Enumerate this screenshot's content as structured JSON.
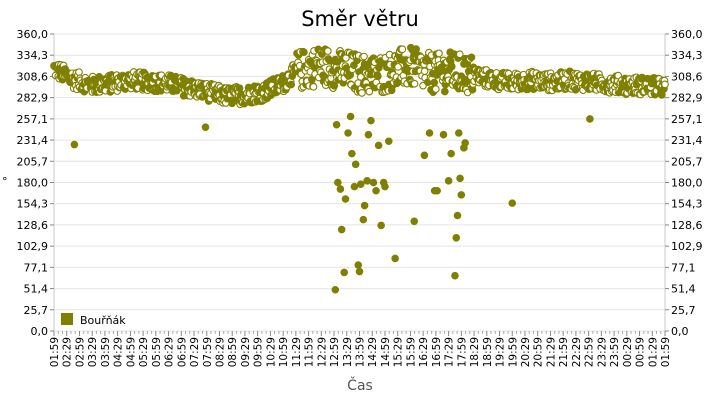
{
  "chart_data": {
    "type": "scatter",
    "title": "Směr větru",
    "xlabel": "Čas",
    "ylabel": "°",
    "ylim": [
      0,
      360
    ],
    "yticks": [
      "0,0",
      "25,7",
      "51,4",
      "77,1",
      "102,9",
      "128,6",
      "154,3",
      "180,0",
      "205,7",
      "231,4",
      "257,1",
      "282,9",
      "308,6",
      "334,3",
      "360,0"
    ],
    "xticks": [
      "01:59",
      "02:29",
      "02:59",
      "03:29",
      "03:59",
      "04:29",
      "04:59",
      "05:29",
      "05:59",
      "06:29",
      "06:59",
      "07:29",
      "07:59",
      "08:29",
      "08:59",
      "09:29",
      "09:59",
      "10:29",
      "10:59",
      "11:29",
      "11:59",
      "12:29",
      "12:59",
      "13:29",
      "13:59",
      "14:29",
      "14:59",
      "15:29",
      "15:59",
      "16:29",
      "16:59",
      "17:29",
      "17:59",
      "18:29",
      "18:59",
      "19:29",
      "19:59",
      "20:29",
      "20:59",
      "21:29",
      "21:59",
      "22:29",
      "22:59",
      "23:29",
      "23:59",
      "00:29",
      "00:59",
      "01:29",
      "01:59"
    ],
    "grid": true,
    "legend": "bottom-left",
    "series": [
      {
        "name": "Bouřňák",
        "color": "#808000",
        "baseline": [
          [
            0.0,
            318
          ],
          [
            1.5,
            305
          ],
          [
            3.0,
            298
          ],
          [
            4.5,
            300
          ],
          [
            6.0,
            304
          ],
          [
            7.5,
            302
          ],
          [
            9.0,
            300
          ],
          [
            10.5,
            295
          ],
          [
            12.0,
            290
          ],
          [
            13.5,
            285
          ],
          [
            15.0,
            286
          ],
          [
            16.5,
            290
          ],
          [
            18.0,
            300
          ],
          [
            19.0,
            315
          ],
          [
            20.0,
            318
          ],
          [
            21.0,
            322
          ],
          [
            22.0,
            318
          ],
          [
            23.0,
            316
          ],
          [
            24.0,
            312
          ],
          [
            25.0,
            310
          ],
          [
            26.0,
            312
          ],
          [
            27.0,
            318
          ],
          [
            28.0,
            320
          ],
          [
            29.0,
            315
          ],
          [
            30.0,
            312
          ],
          [
            31.0,
            315
          ],
          [
            32.0,
            312
          ],
          [
            33.0,
            310
          ],
          [
            34.0,
            306
          ],
          [
            35.0,
            303
          ],
          [
            36.0,
            302
          ],
          [
            37.5,
            304
          ],
          [
            39.0,
            302
          ],
          [
            40.5,
            304
          ],
          [
            42.0,
            302
          ],
          [
            43.5,
            300
          ],
          [
            45.0,
            298
          ],
          [
            46.5,
            297
          ],
          [
            48.0,
            295
          ]
        ],
        "outliers": [
          [
            1.6,
            226
          ],
          [
            11.9,
            247
          ],
          [
            22.1,
            50
          ],
          [
            22.2,
            250
          ],
          [
            22.3,
            180
          ],
          [
            22.5,
            172
          ],
          [
            22.6,
            123
          ],
          [
            22.8,
            71
          ],
          [
            22.9,
            160
          ],
          [
            23.1,
            240
          ],
          [
            23.3,
            260
          ],
          [
            23.4,
            215
          ],
          [
            23.6,
            175
          ],
          [
            23.7,
            202
          ],
          [
            23.9,
            80
          ],
          [
            24.0,
            72
          ],
          [
            24.1,
            178
          ],
          [
            24.3,
            135
          ],
          [
            24.4,
            152
          ],
          [
            24.6,
            182
          ],
          [
            24.7,
            238
          ],
          [
            24.9,
            255
          ],
          [
            25.1,
            180
          ],
          [
            25.3,
            170
          ],
          [
            25.5,
            225
          ],
          [
            25.7,
            128
          ],
          [
            25.9,
            180
          ],
          [
            26.0,
            175
          ],
          [
            26.3,
            230
          ],
          [
            26.8,
            88
          ],
          [
            28.3,
            133
          ],
          [
            29.1,
            213
          ],
          [
            29.5,
            240
          ],
          [
            29.9,
            170
          ],
          [
            30.1,
            170
          ],
          [
            30.6,
            238
          ],
          [
            31.0,
            182
          ],
          [
            31.2,
            215
          ],
          [
            31.5,
            67
          ],
          [
            31.6,
            113
          ],
          [
            31.7,
            140
          ],
          [
            31.9,
            185
          ],
          [
            32.0,
            165
          ],
          [
            32.2,
            222
          ],
          [
            32.3,
            228
          ],
          [
            31.8,
            240
          ],
          [
            36.0,
            155
          ],
          [
            42.1,
            257
          ]
        ]
      }
    ]
  }
}
